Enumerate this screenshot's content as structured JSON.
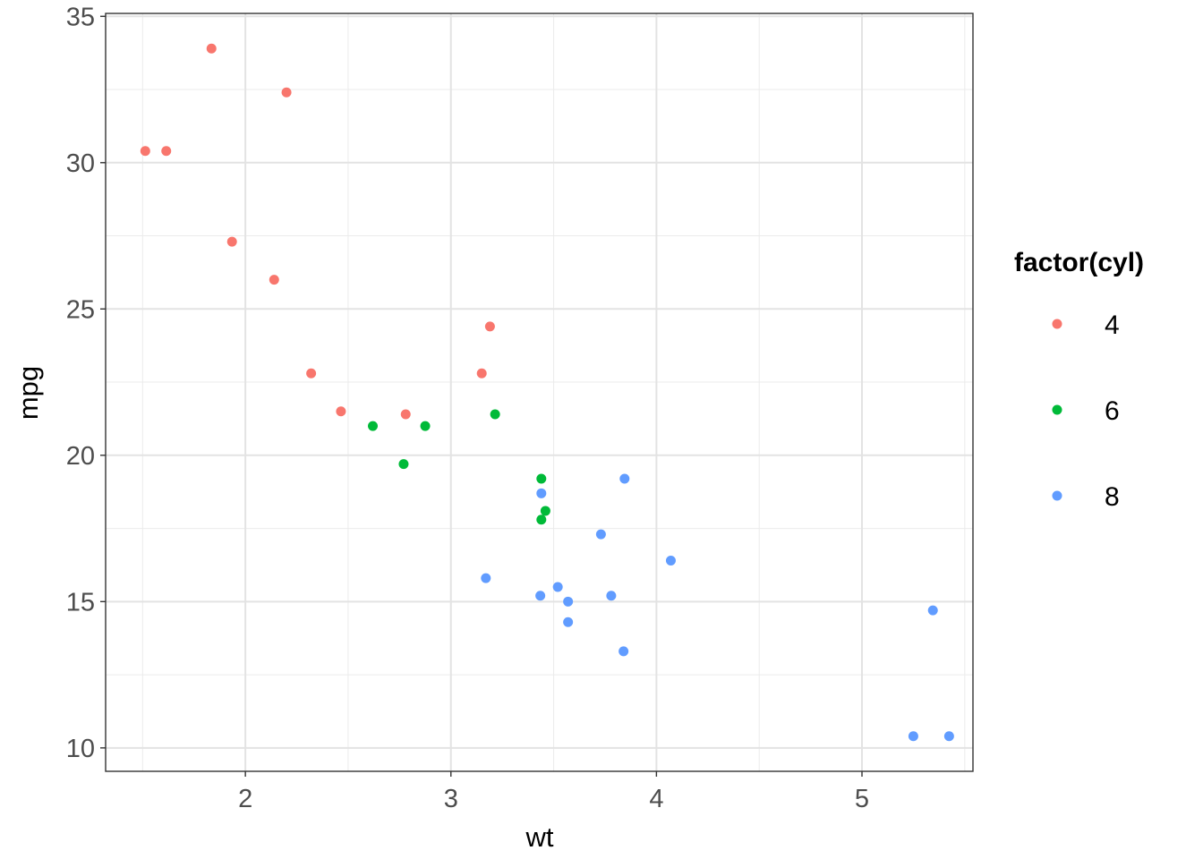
{
  "chart_data": {
    "type": "scatter",
    "xlabel": "wt",
    "ylabel": "mpg",
    "xlim": [
      1.32,
      5.54
    ],
    "ylim": [
      9.2,
      35.1
    ],
    "x_ticks": [
      2,
      3,
      4,
      5
    ],
    "x_tick_labels": [
      "2",
      "3",
      "4",
      "5"
    ],
    "x_minor": [
      1.5,
      2.5,
      3.5,
      4.5,
      5.5
    ],
    "y_ticks": [
      10,
      15,
      20,
      25,
      30,
      35
    ],
    "y_tick_labels": [
      "10",
      "15",
      "20",
      "25",
      "30",
      "35"
    ],
    "y_minor": [
      12.5,
      17.5,
      22.5,
      27.5,
      32.5
    ],
    "grid": true,
    "legend": {
      "title": "factor(cyl)",
      "position": "right"
    },
    "series": [
      {
        "name": "4",
        "color": "#F8766D",
        "points": [
          {
            "x": 2.32,
            "y": 22.8
          },
          {
            "x": 3.19,
            "y": 24.4
          },
          {
            "x": 3.15,
            "y": 22.8
          },
          {
            "x": 2.2,
            "y": 32.4
          },
          {
            "x": 1.615,
            "y": 30.4
          },
          {
            "x": 1.835,
            "y": 33.9
          },
          {
            "x": 2.465,
            "y": 21.5
          },
          {
            "x": 1.935,
            "y": 27.3
          },
          {
            "x": 2.14,
            "y": 26.0
          },
          {
            "x": 1.513,
            "y": 30.4
          },
          {
            "x": 2.78,
            "y": 21.4
          }
        ]
      },
      {
        "name": "6",
        "color": "#00BA38",
        "points": [
          {
            "x": 2.62,
            "y": 21.0
          },
          {
            "x": 2.875,
            "y": 21.0
          },
          {
            "x": 3.215,
            "y": 21.4
          },
          {
            "x": 3.46,
            "y": 18.1
          },
          {
            "x": 3.44,
            "y": 19.2
          },
          {
            "x": 3.44,
            "y": 17.8
          },
          {
            "x": 2.77,
            "y": 19.7
          }
        ]
      },
      {
        "name": "8",
        "color": "#619CFF",
        "points": [
          {
            "x": 3.44,
            "y": 18.7
          },
          {
            "x": 3.57,
            "y": 14.3
          },
          {
            "x": 4.07,
            "y": 16.4
          },
          {
            "x": 3.73,
            "y": 17.3
          },
          {
            "x": 3.78,
            "y": 15.2
          },
          {
            "x": 5.25,
            "y": 10.4
          },
          {
            "x": 5.424,
            "y": 10.4
          },
          {
            "x": 5.345,
            "y": 14.7
          },
          {
            "x": 3.52,
            "y": 15.5
          },
          {
            "x": 3.435,
            "y": 15.2
          },
          {
            "x": 3.84,
            "y": 13.3
          },
          {
            "x": 3.845,
            "y": 19.2
          },
          {
            "x": 3.17,
            "y": 15.8
          },
          {
            "x": 3.57,
            "y": 15.0
          }
        ]
      }
    ]
  }
}
